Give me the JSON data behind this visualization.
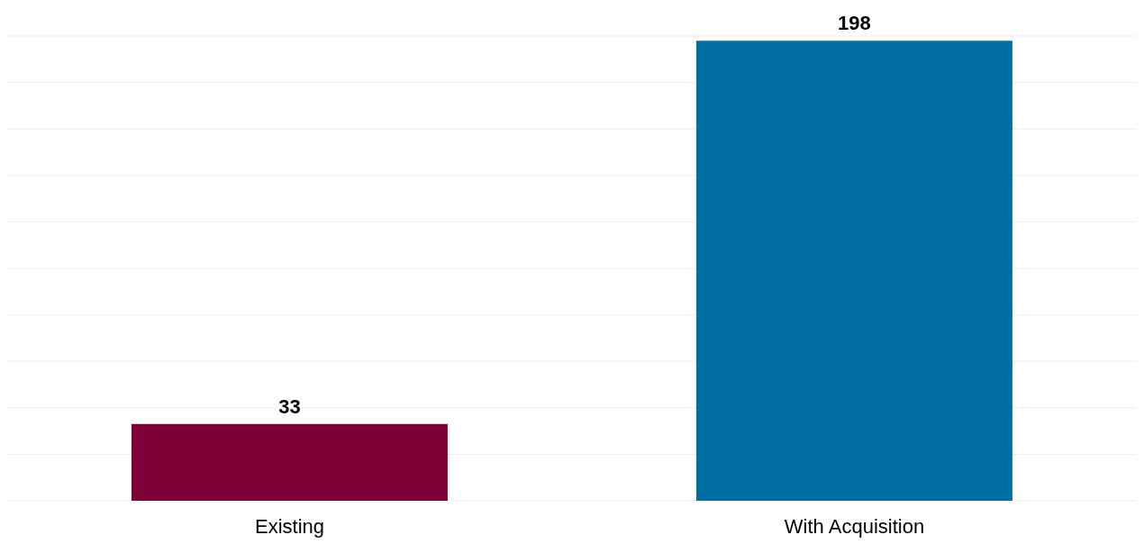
{
  "chart_data": {
    "type": "bar",
    "categories": [
      "Existing",
      "With Acquisition"
    ],
    "values": [
      33,
      198
    ],
    "colors": [
      "#7f0037",
      "#0070a4"
    ],
    "grid": "y",
    "tick_labels": "x",
    "data_labels": true,
    "legend": false
  }
}
